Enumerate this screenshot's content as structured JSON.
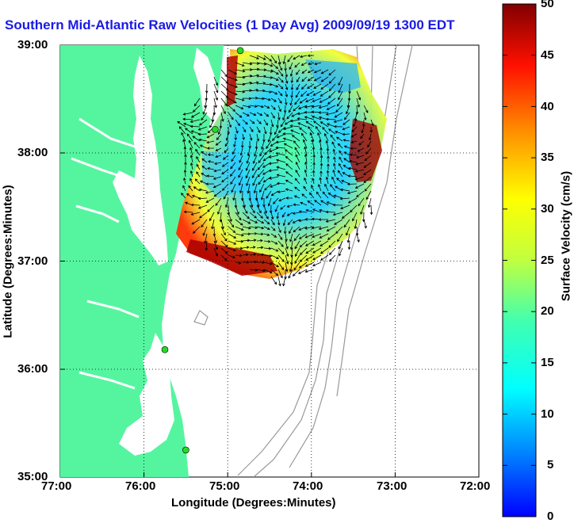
{
  "title": "Southern Mid-Atlantic Raw Velocities (1 Day Avg) 2009/09/19 1300 EDT",
  "axes": {
    "xlabel": "Longitude (Degrees:Minutes)",
    "ylabel": "Latitude (Degrees:Minutes)",
    "xticks": [
      "77:00",
      "76:00",
      "75:00",
      "74:00",
      "73:00",
      "72:00"
    ],
    "yticks": [
      "39:00",
      "38:00",
      "37:00",
      "36:00",
      "35:00"
    ],
    "xlim": [
      -77,
      -72
    ],
    "ylim": [
      35,
      39
    ]
  },
  "colorbar": {
    "label": "Surface Velocity (cm/s)",
    "ticks": [
      "50",
      "45",
      "40",
      "35",
      "30",
      "25",
      "20",
      "15",
      "10",
      "5",
      "0"
    ],
    "range": [
      0,
      50
    ]
  },
  "colors": {
    "land": "#55f5a0",
    "water": "#ffffff",
    "title": "#1a1ae6",
    "station": "#22dd22"
  },
  "stations": [
    {
      "lon": -74.85,
      "lat": 38.95
    },
    {
      "lon": -75.15,
      "lat": 38.22
    },
    {
      "lon": -75.75,
      "lat": 36.18
    },
    {
      "lon": -75.5,
      "lat": 35.25
    }
  ]
}
